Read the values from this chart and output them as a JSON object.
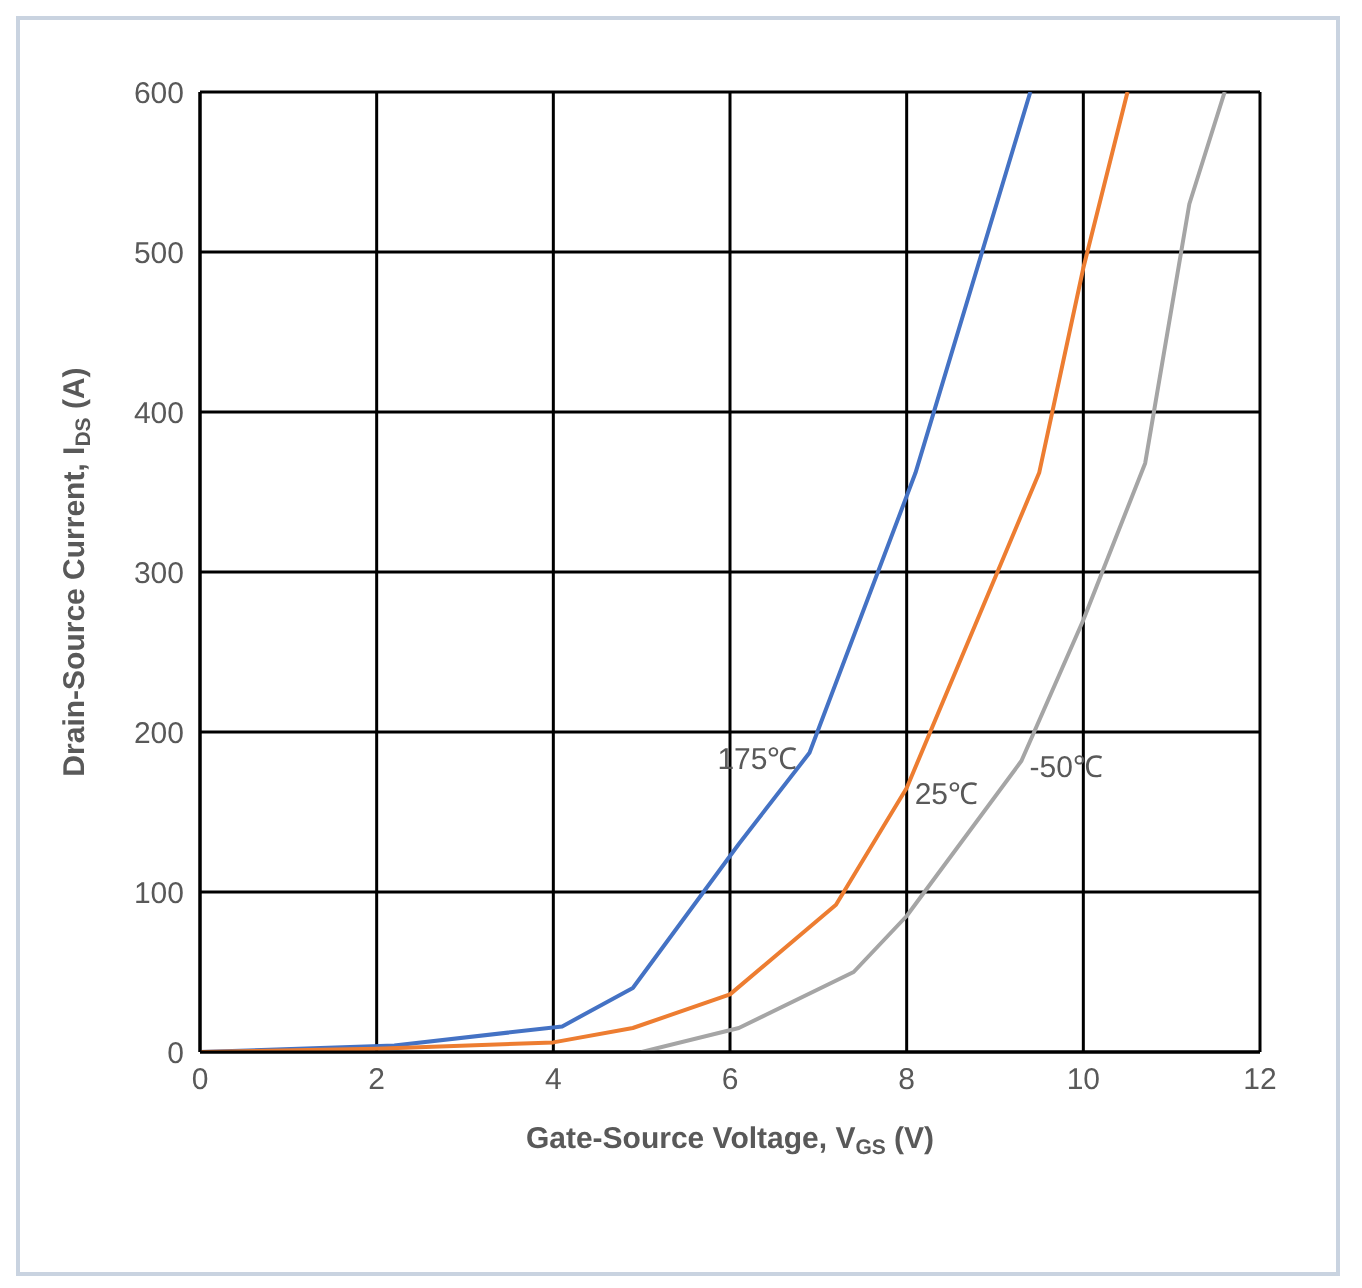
{
  "chart_data": {
    "type": "line",
    "xlabel": "Gate-Source Voltage, V$_{GS}$ (V)",
    "ylabel": "Drain-Source Current, I$_{DS}$ (A)",
    "xlim": [
      0,
      12
    ],
    "xticks": [
      0,
      2,
      4,
      6,
      8,
      10,
      12
    ],
    "ylim": [
      0,
      600
    ],
    "yticks": [
      0,
      100,
      200,
      300,
      400,
      500,
      600
    ],
    "grid": true,
    "legend": false,
    "marker": "none",
    "line_style": "solid",
    "series": [
      {
        "name": "175℃",
        "color": "#4472c4",
        "x": [
          0,
          2.2,
          4.1,
          4.9,
          6.1,
          6.9,
          8.1,
          9.4
        ],
        "values": [
          0,
          4,
          16,
          40,
          130,
          187,
          362,
          600
        ]
      },
      {
        "name": "25℃",
        "color": "#ed7d31",
        "x": [
          0,
          2,
          4,
          4.9,
          6,
          7.2,
          8,
          9.5,
          10,
          10.5
        ],
        "values": [
          0,
          2,
          6,
          15,
          36,
          92,
          165,
          362,
          490,
          600
        ]
      },
      {
        "name": "-50℃",
        "color": "#a5a5a5",
        "x": [
          5,
          6.1,
          7.4,
          8,
          9.3,
          10,
          10.7,
          11.2,
          11.6
        ],
        "values": [
          0,
          15,
          50,
          85,
          182,
          270,
          368,
          530,
          600
        ]
      }
    ]
  }
}
